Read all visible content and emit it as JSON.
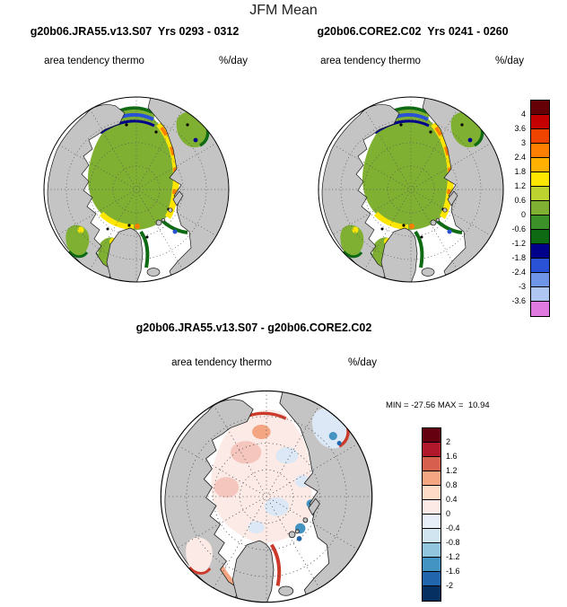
{
  "title": "JFM Mean",
  "panels": {
    "left": {
      "header": "g20b06.JRA55.v13.S07  Yrs 0293 - 0312",
      "var_label": "area tendency thermo",
      "units_label": "%/day"
    },
    "right": {
      "header": "g20b06.CORE2.C02  Yrs 0241 - 0260",
      "var_label": "area tendency thermo",
      "units_label": "%/day"
    },
    "diff": {
      "header": "g20b06.JRA55.v13.S07 - g20b06.CORE2.C02",
      "var_label": "area tendency thermo",
      "units_label": "%/day",
      "minmax_label": "MIN = -27.56 MAX =  10.94"
    }
  },
  "colorbar_main": {
    "labels": [
      "4",
      "3.6",
      "3",
      "2.4",
      "1.8",
      "1.2",
      "0.6",
      "0",
      "-0.6",
      "-1.2",
      "-1.8",
      "-2.4",
      "-3",
      "-3.6"
    ],
    "colors": [
      "#650006",
      "#c40000",
      "#ee4400",
      "#ff7f00",
      "#ffb000",
      "#ffe600",
      "#bcd22f",
      "#7fb032",
      "#3c9128",
      "#0e6b14",
      "#00008b",
      "#2a52d6",
      "#6f95e8",
      "#b0c6f2",
      "#e07ae0"
    ]
  },
  "colorbar_diff": {
    "labels": [
      "2",
      "1.6",
      "1.2",
      "0.8",
      "0.4",
      "0",
      "-0.4",
      "-0.8",
      "-1.2",
      "-1.6",
      "-2"
    ],
    "colors": [
      "#650011",
      "#b2182b",
      "#d6604d",
      "#f4a582",
      "#fddbc7",
      "#fbeae5",
      "#e8eef8",
      "#d1e5f0",
      "#92c5de",
      "#4393c3",
      "#2166ac",
      "#053061"
    ]
  },
  "chart_data": [
    {
      "type": "heatmap",
      "subtype": "north_polar_stereographic_map",
      "title": "g20b06.JRA55.v13.S07  Yrs 0293 - 0312",
      "season": "JFM Mean",
      "variable": "area tendency thermo",
      "units": "%/day",
      "levels": [
        -3.6,
        -3,
        -2.4,
        -1.8,
        -1.2,
        -0.6,
        0,
        0.6,
        1.2,
        1.8,
        2.4,
        3,
        3.6,
        4
      ],
      "palette_ref": "colorbar_main",
      "legend_position": "right",
      "description": "Central Arctic ice pack mostly 0 to 0.6 %/day (green); yellow/orange positive bands along the Siberian shelf, north Greenland, Baffin and Hudson Bay; dark green, blue and magenta negative bands along Bering, Okhotsk, Labrador, East Greenland and Barents ice edges; land gray, open ocean white."
    },
    {
      "type": "heatmap",
      "subtype": "north_polar_stereographic_map",
      "title": "g20b06.CORE2.C02  Yrs 0241 - 0260",
      "season": "JFM Mean",
      "variable": "area tendency thermo",
      "units": "%/day",
      "levels": [
        -3.6,
        -3,
        -2.4,
        -1.8,
        -1.2,
        -0.6,
        0,
        0.6,
        1.2,
        1.8,
        2.4,
        3,
        3.6,
        4
      ],
      "palette_ref": "colorbar_main",
      "legend_position": "right",
      "description": "Nearly identical spatial pattern to the JRA55 panel."
    },
    {
      "type": "heatmap",
      "subtype": "north_polar_stereographic_map_difference",
      "title": "g20b06.JRA55.v13.S07 - g20b06.CORE2.C02",
      "variable": "area tendency thermo",
      "units": "%/day",
      "min": -27.56,
      "max": 10.94,
      "levels": [
        -2,
        -1.6,
        -1.2,
        -0.8,
        -0.4,
        0,
        0.4,
        0.8,
        1.2,
        1.6,
        2
      ],
      "palette_ref": "colorbar_diff",
      "legend_position": "right",
      "description": "Differences near zero (pale pink/blue) over the central Arctic; red along Labrador, East Greenland and Bering ice edges; blue in the Barents-Kara region and Sea of Okhotsk."
    }
  ]
}
